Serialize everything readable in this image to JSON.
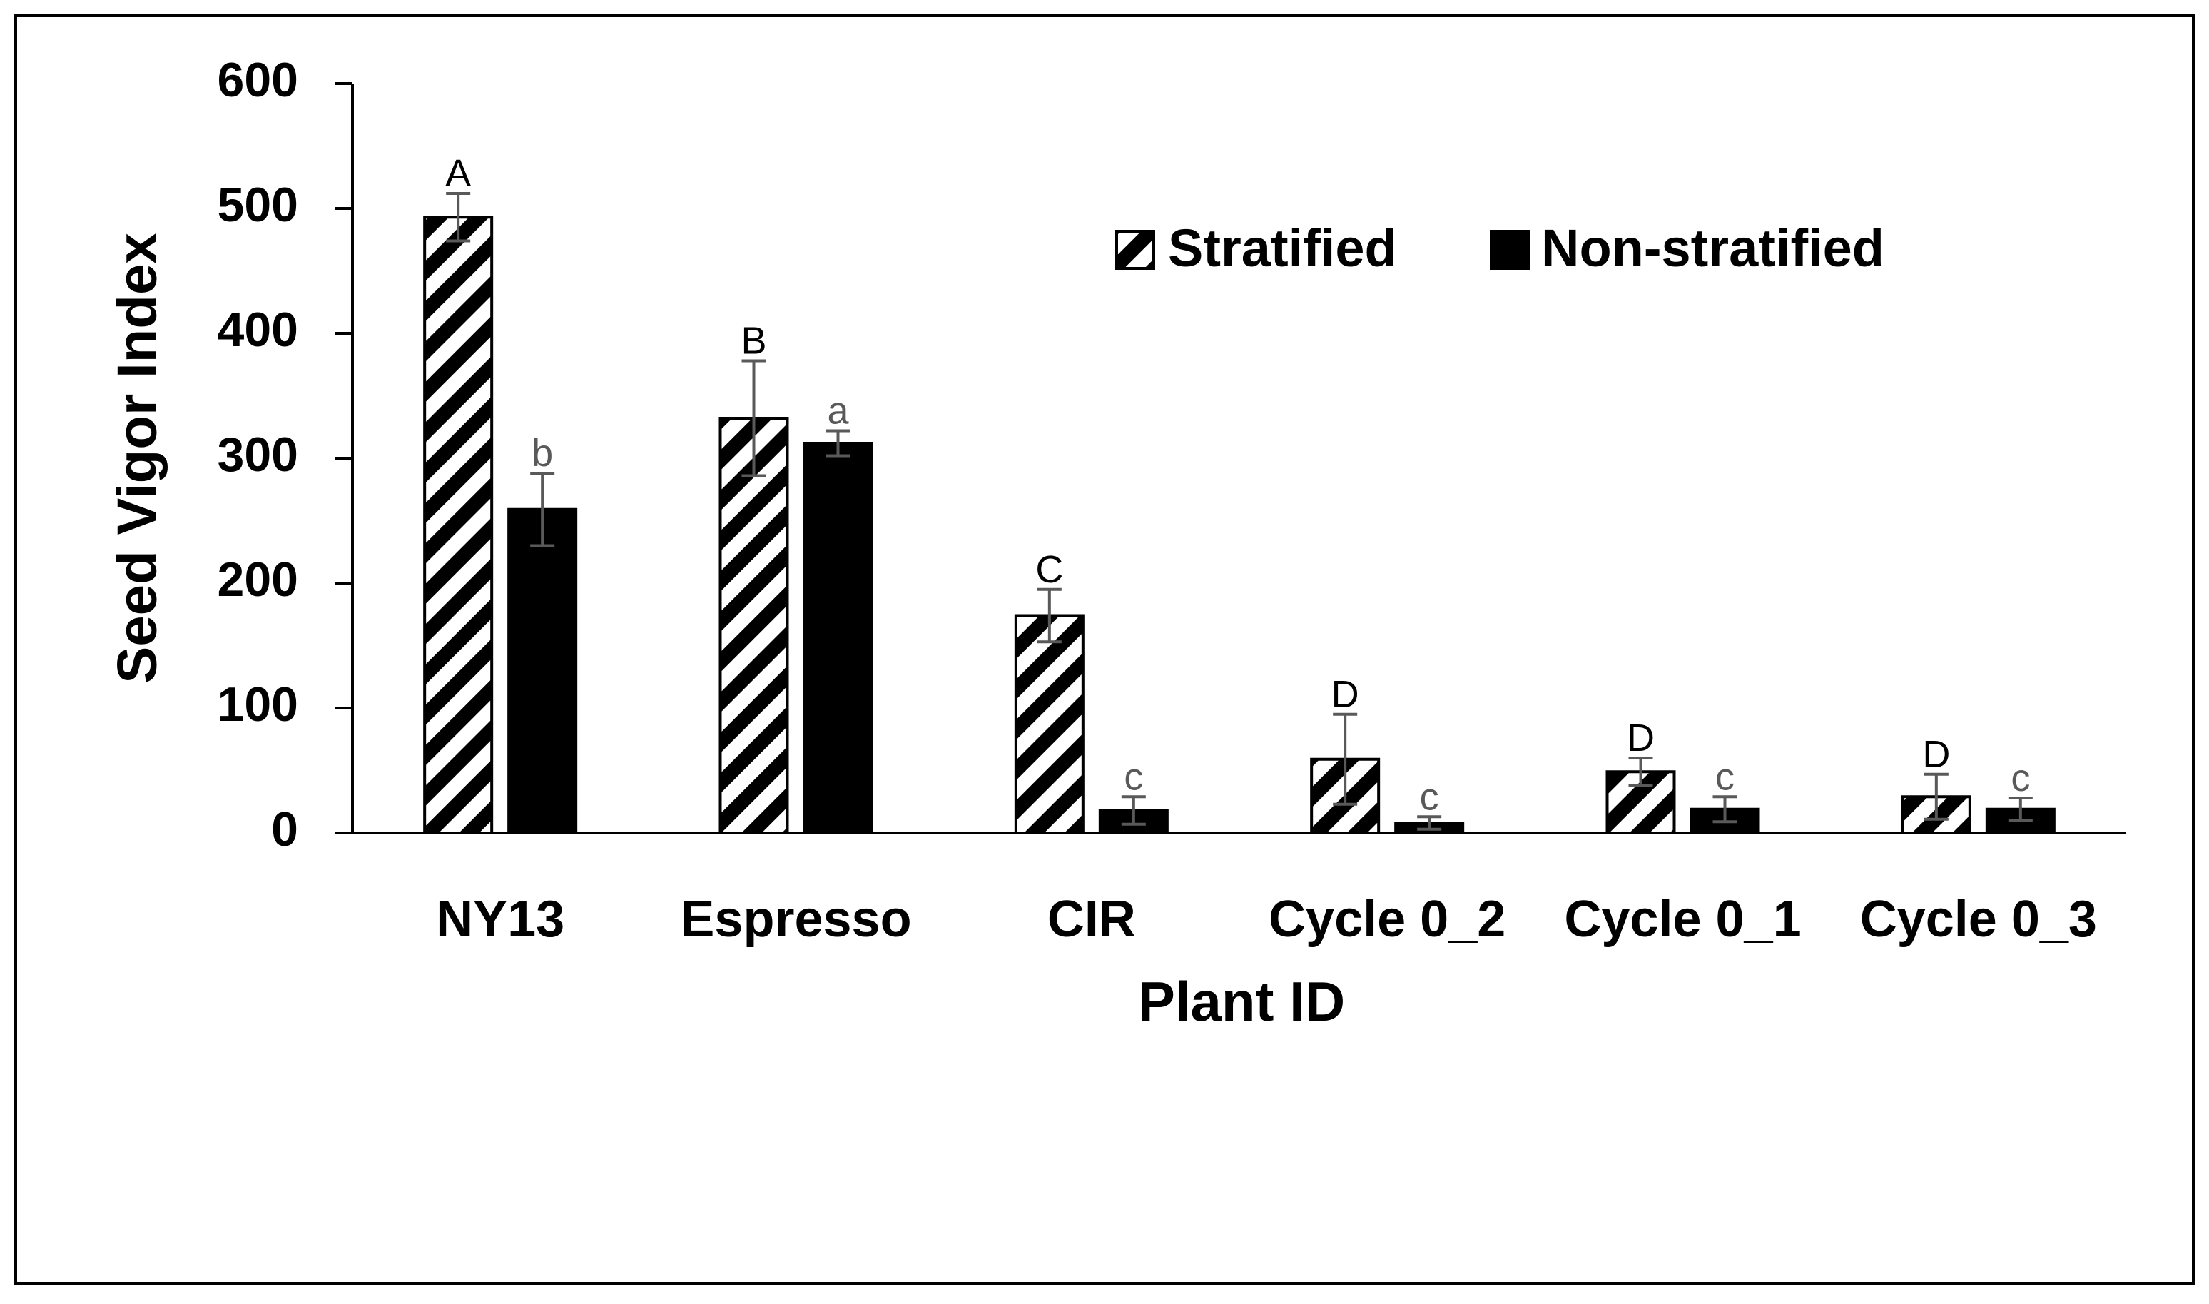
{
  "chart_data": {
    "type": "bar",
    "title": "",
    "xlabel": "Plant ID",
    "ylabel": "Seed Vigor Index",
    "ylim": [
      0,
      600
    ],
    "yticks": [
      0,
      100,
      200,
      300,
      400,
      500,
      600
    ],
    "categories": [
      "NY13",
      "Espresso",
      "CIR",
      "Cycle 0_2",
      "Cycle 0_1",
      "Cycle 0_3"
    ],
    "legend_position": "top-right",
    "series": [
      {
        "name": "Stratified",
        "fill": "hatched",
        "values": [
          493,
          332,
          174,
          59,
          49,
          29
        ],
        "errors": [
          19,
          46,
          21,
          36,
          11,
          18
        ],
        "significance": [
          "A",
          "B",
          "C",
          "D",
          "D",
          "D"
        ]
      },
      {
        "name": "Non-stratified",
        "fill": "solid",
        "values": [
          259,
          312,
          18,
          8,
          19,
          19
        ],
        "errors": [
          29,
          10,
          11,
          5,
          10,
          9
        ],
        "significance": [
          "b",
          "a",
          "c",
          "c",
          "c",
          "c"
        ]
      }
    ],
    "colors": {
      "bar_fill": "#000000",
      "hatch_background": "#ffffff",
      "error_bar": "#595959",
      "lowercase_letter": "#595959"
    }
  }
}
